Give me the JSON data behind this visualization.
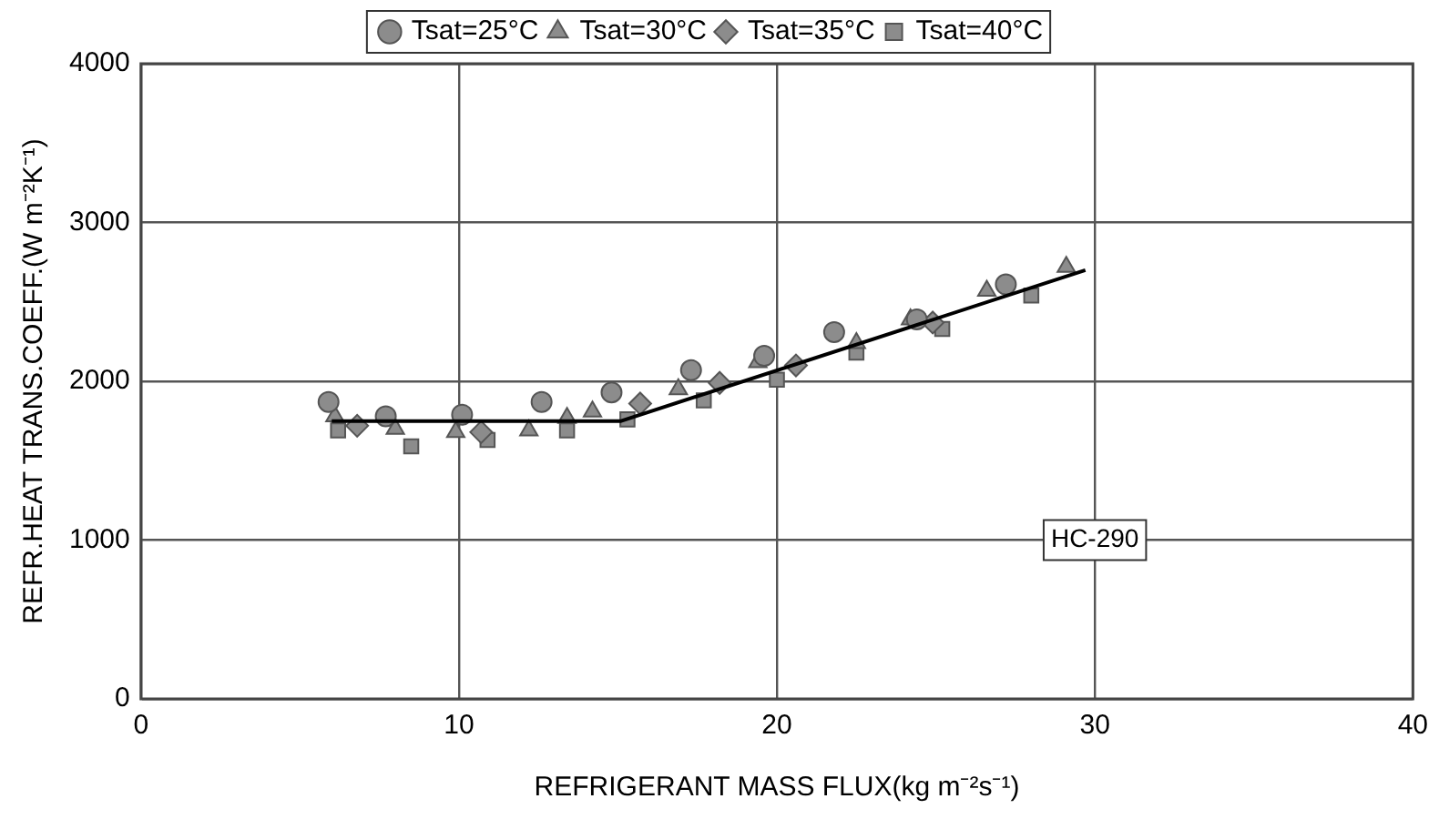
{
  "chart_data": {
    "type": "scatter",
    "xlabel": "REFRIGERANT MASS FLUX(kg m⁻²s⁻¹)",
    "ylabel": "REFR.HEAT TRANS.COEFF.(W m⁻²K⁻¹)",
    "series": [
      {
        "name": "Tsat=25°C",
        "color": "#8c8c8c",
        "marker": "circle",
        "x": [
          5.9,
          7.7,
          10.1,
          12.6,
          14.8,
          17.3,
          19.6,
          21.8,
          24.4,
          27.2
        ],
        "values": [
          1870,
          1780,
          1790,
          1870,
          1930,
          2070,
          2160,
          2310,
          2390,
          2610
        ]
      },
      {
        "name": "Tsat=30°C",
        "color": "#8c8c8c",
        "marker": "triangle",
        "x": [
          6.1,
          8.0,
          9.9,
          12.2,
          13.4,
          14.2,
          16.9,
          19.4,
          22.5,
          24.2,
          26.6,
          29.1
        ],
        "values": [
          1780,
          1700,
          1680,
          1690,
          1770,
          1810,
          1950,
          2120,
          2240,
          2390,
          2570,
          2720
        ]
      },
      {
        "name": "Tsat=35°C",
        "color": "#8c8c8c",
        "marker": "diamond",
        "x": [
          6.8,
          10.7,
          15.7,
          18.2,
          20.6,
          24.9
        ],
        "values": [
          1720,
          1680,
          1860,
          1990,
          2100,
          2370
        ]
      },
      {
        "name": "Tsat=40°C",
        "color": "#8c8c8c",
        "marker": "square",
        "x": [
          6.2,
          8.5,
          10.9,
          13.4,
          15.3,
          17.7,
          20.0,
          22.5,
          25.2,
          28.0
        ],
        "values": [
          1690,
          1590,
          1630,
          1690,
          1760,
          1880,
          2010,
          2180,
          2330,
          2540
        ]
      },
      {
        "type": "line",
        "color": "#000000",
        "marker": "none",
        "x": [
          6,
          15.1,
          29.7
        ],
        "values": [
          1750,
          1750,
          2700
        ]
      }
    ],
    "xlim": [
      0,
      40
    ],
    "xticks": [
      0,
      10,
      20,
      30,
      40
    ],
    "ylim": [
      0,
      4000
    ],
    "yticks": [
      0,
      1000,
      2000,
      3000,
      4000
    ],
    "grid": true,
    "legend": "top",
    "annotations": [
      "HC-290"
    ]
  }
}
